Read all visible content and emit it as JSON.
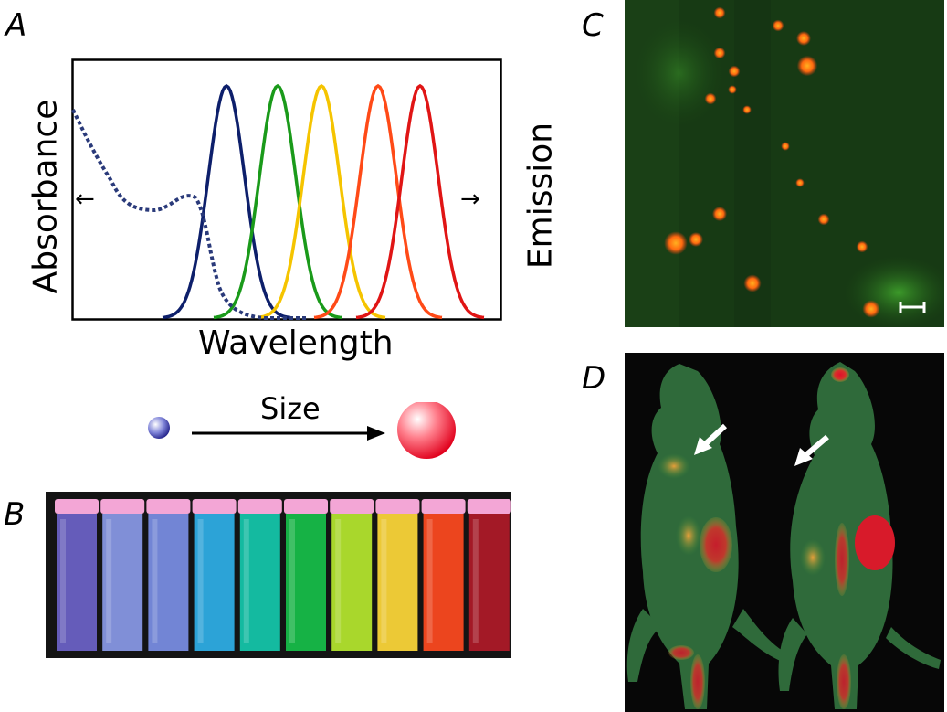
{
  "panel_letters": {
    "a": "A",
    "b": "B",
    "c": "C",
    "d": "D"
  },
  "panel_a": {
    "ylabel": "Absorbance",
    "xlabel": "Wavelength",
    "right_label": "Emission",
    "left_arrow": "←",
    "right_arrow": "→",
    "emission_colors": [
      "#0d1f6b",
      "#1a9a1a",
      "#f5c400",
      "#ff4a17",
      "#e01515"
    ],
    "absorbance_line_color": "#2a3a7a"
  },
  "size_scale": {
    "label": "Size",
    "small_dot_color": "#3d3fa8",
    "large_dot_color": "#ff2a3c"
  },
  "panel_b": {
    "vial_colors": [
      "#6d63c9",
      "#8a9ae8",
      "#7b8fe6",
      "#2fb0e8",
      "#15c9ad",
      "#17c04a",
      "#b6e82f",
      "#ffd93a",
      "#ff4a20",
      "#b01a28"
    ]
  },
  "panel_c": {
    "background": "#123611",
    "spot_color": "#ff7a14",
    "scalebar": "scale-bar"
  },
  "panel_d": {
    "background": "#0a0a0a",
    "arrow_color": "#ffffff"
  }
}
